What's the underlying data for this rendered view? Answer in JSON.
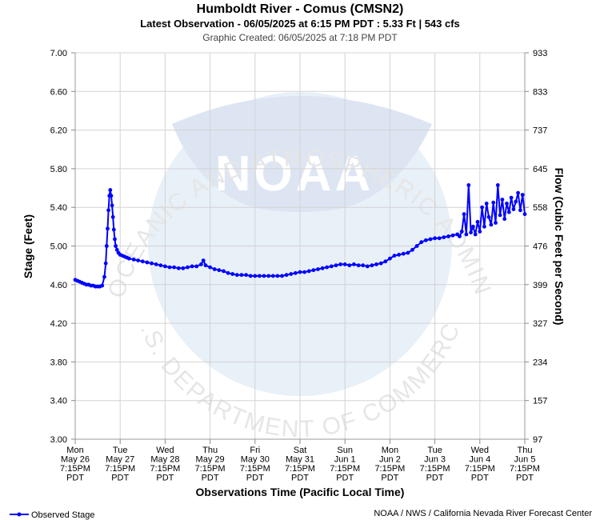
{
  "header": {
    "title": "Humboldt River - Comus (CMSN2)",
    "subtitle": "Latest Observation - 06/05/2025 at 6:15 PM PDT : 5.33 Ft | 543 cfs",
    "created": "Graphic Created: 06/05/2025 at 7:18 PM PDT"
  },
  "watermark": {
    "logo_text": "NOAA",
    "ring_top": "NATIONAL OCEANIC AND ATMOSPHERIC ADMINISTRATION",
    "ring_bottom": "U.S. DEPARTMENT OF COMMERCE"
  },
  "footer": {
    "legend_label": "Observed Stage",
    "credit": "NOAA / NWS / California Nevada River Forecast Center"
  },
  "colors": {
    "series": "#0000ff",
    "grid": "#d3d3d3",
    "watermark": "#e8f0f8"
  },
  "chart_data": {
    "type": "line",
    "title": "Humboldt River - Comus (CMSN2)",
    "xlabel": "Observations Time (Pacific Local Time)",
    "ylabel": "Stage (Feet)",
    "y2label": "Flow (Cubic Feet per Second)",
    "ylim": [
      3.0,
      7.0
    ],
    "xlim_days": [
      0,
      10
    ],
    "y_ticks": [
      "3.00",
      "3.40",
      "3.80",
      "4.20",
      "4.60",
      "5.00",
      "5.40",
      "5.80",
      "6.20",
      "6.60",
      "7.00"
    ],
    "y2_ticks": [
      "97",
      "157",
      "234",
      "327",
      "399",
      "476",
      "558",
      "645",
      "737",
      "833",
      "933"
    ],
    "x_ticks": [
      {
        "day": "Mon",
        "date": "May 26",
        "time": "7:15PM",
        "tz": "PDT"
      },
      {
        "day": "Tue",
        "date": "May 27",
        "time": "7:15PM",
        "tz": "PDT"
      },
      {
        "day": "Wed",
        "date": "May 28",
        "time": "7:15PM",
        "tz": "PDT"
      },
      {
        "day": "Thu",
        "date": "May 29",
        "time": "7:15PM",
        "tz": "PDT"
      },
      {
        "day": "Fri",
        "date": "May 30",
        "time": "7:15PM",
        "tz": "PDT"
      },
      {
        "day": "Sat",
        "date": "May 31",
        "time": "7:15PM",
        "tz": "PDT"
      },
      {
        "day": "Sun",
        "date": "Jun 1",
        "time": "7:15PM",
        "tz": "PDT"
      },
      {
        "day": "Mon",
        "date": "Jun 2",
        "time": "7:15PM",
        "tz": "PDT"
      },
      {
        "day": "Tue",
        "date": "Jun 3",
        "time": "7:15PM",
        "tz": "PDT"
      },
      {
        "day": "Wed",
        "date": "Jun 4",
        "time": "7:15PM",
        "tz": "PDT"
      },
      {
        "day": "Thu",
        "date": "Jun 5",
        "time": "7:15PM",
        "tz": "PDT"
      }
    ],
    "grid": true,
    "legend_position": "bottom-left",
    "series": [
      {
        "name": "Observed Stage",
        "x": [
          0,
          0.05,
          0.1,
          0.15,
          0.2,
          0.25,
          0.3,
          0.35,
          0.4,
          0.45,
          0.5,
          0.55,
          0.6,
          0.65,
          0.68,
          0.7,
          0.72,
          0.74,
          0.76,
          0.78,
          0.8,
          0.82,
          0.84,
          0.86,
          0.88,
          0.9,
          0.93,
          0.96,
          1.0,
          1.05,
          1.1,
          1.15,
          1.2,
          1.3,
          1.4,
          1.5,
          1.6,
          1.7,
          1.8,
          1.9,
          2.0,
          2.1,
          2.2,
          2.3,
          2.4,
          2.5,
          2.6,
          2.7,
          2.8,
          2.85,
          2.9,
          3.0,
          3.1,
          3.2,
          3.3,
          3.4,
          3.5,
          3.6,
          3.7,
          3.8,
          3.9,
          4.0,
          4.1,
          4.2,
          4.3,
          4.4,
          4.5,
          4.6,
          4.7,
          4.8,
          4.9,
          5.0,
          5.1,
          5.2,
          5.3,
          5.4,
          5.5,
          5.6,
          5.7,
          5.8,
          5.9,
          6.0,
          6.1,
          6.2,
          6.3,
          6.4,
          6.5,
          6.6,
          6.7,
          6.8,
          6.9,
          7.0,
          7.1,
          7.2,
          7.3,
          7.4,
          7.5,
          7.6,
          7.7,
          7.8,
          7.9,
          8.0,
          8.1,
          8.2,
          8.3,
          8.4,
          8.5,
          8.55,
          8.6,
          8.65,
          8.7,
          8.75,
          8.8,
          8.85,
          8.9,
          8.95,
          9.0,
          9.05,
          9.1,
          9.15,
          9.2,
          9.25,
          9.3,
          9.35,
          9.4,
          9.45,
          9.5,
          9.55,
          9.6,
          9.65,
          9.7,
          9.75,
          9.8,
          9.85,
          9.9,
          9.95,
          10.0
        ],
        "y": [
          4.65,
          4.64,
          4.63,
          4.62,
          4.61,
          4.6,
          4.6,
          4.59,
          4.59,
          4.58,
          4.58,
          4.58,
          4.59,
          4.68,
          4.82,
          5.0,
          5.18,
          5.37,
          5.52,
          5.58,
          5.52,
          5.42,
          5.3,
          5.17,
          5.07,
          5.0,
          4.96,
          4.93,
          4.91,
          4.9,
          4.89,
          4.88,
          4.87,
          4.86,
          4.85,
          4.84,
          4.83,
          4.82,
          4.81,
          4.8,
          4.79,
          4.78,
          4.78,
          4.77,
          4.77,
          4.78,
          4.79,
          4.79,
          4.81,
          4.85,
          4.8,
          4.78,
          4.76,
          4.75,
          4.74,
          4.72,
          4.71,
          4.7,
          4.7,
          4.7,
          4.69,
          4.69,
          4.69,
          4.69,
          4.69,
          4.69,
          4.69,
          4.69,
          4.7,
          4.71,
          4.72,
          4.73,
          4.73,
          4.74,
          4.75,
          4.76,
          4.77,
          4.78,
          4.79,
          4.8,
          4.81,
          4.81,
          4.8,
          4.81,
          4.8,
          4.8,
          4.79,
          4.8,
          4.81,
          4.82,
          4.84,
          4.87,
          4.9,
          4.91,
          4.92,
          4.93,
          4.96,
          5.0,
          5.04,
          5.06,
          5.07,
          5.08,
          5.08,
          5.09,
          5.1,
          5.11,
          5.12,
          5.1,
          5.15,
          5.33,
          5.12,
          5.63,
          5.14,
          5.2,
          5.12,
          5.25,
          5.15,
          5.4,
          5.2,
          5.44,
          5.3,
          5.22,
          5.45,
          5.24,
          5.63,
          5.32,
          5.48,
          5.28,
          5.44,
          5.35,
          5.5,
          5.38,
          5.46,
          5.55,
          5.37,
          5.53,
          5.33
        ]
      }
    ]
  }
}
